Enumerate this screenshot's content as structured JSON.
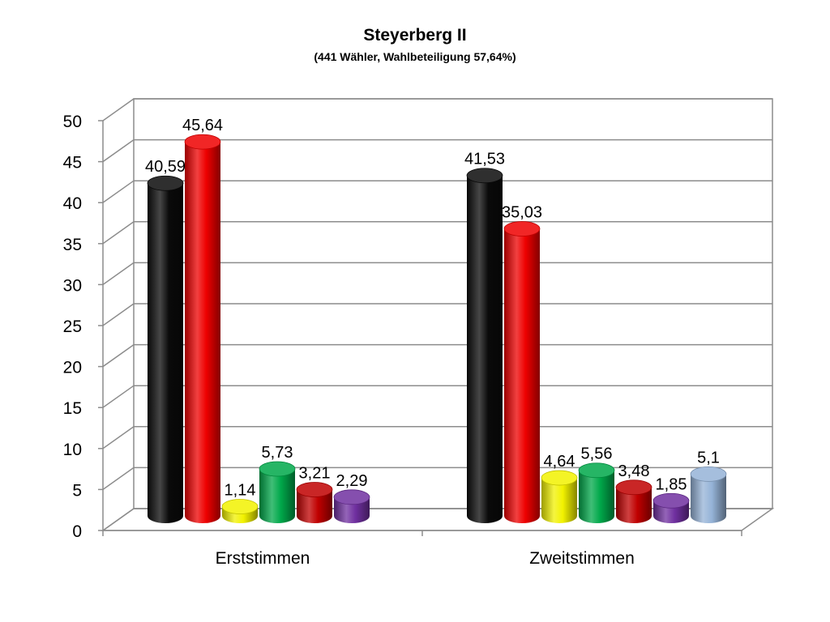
{
  "title": "Steyerberg II",
  "subtitle": "(441 Wähler, Wahlbeteiligung 57,64%)",
  "chart_data": {
    "type": "bar",
    "style": "3d-cylinder",
    "grid": true,
    "legend": "none",
    "ylim": [
      0,
      50
    ],
    "yticks": [
      "0",
      "5",
      "10",
      "15",
      "20",
      "25",
      "30",
      "35",
      "40",
      "45",
      "50"
    ],
    "categories": [
      "Erststimmen",
      "Zweitstimmen"
    ],
    "groups": [
      {
        "category": "Erststimmen",
        "bars": [
          {
            "value": 40.59,
            "label": "40,59",
            "color": "#0a0a0a"
          },
          {
            "value": 45.64,
            "label": "45,64",
            "color": "#ee0000"
          },
          {
            "value": 1.14,
            "label": "1,14",
            "color": "#f2f200"
          },
          {
            "value": 5.73,
            "label": "5,73",
            "color": "#00a84a"
          },
          {
            "value": 3.21,
            "label": "3,21",
            "color": "#c00000"
          },
          {
            "value": 2.29,
            "label": "2,29",
            "color": "#7030a0"
          }
        ]
      },
      {
        "category": "Zweitstimmen",
        "bars": [
          {
            "value": 41.53,
            "label": "41,53",
            "color": "#0a0a0a"
          },
          {
            "value": 35.03,
            "label": "35,03",
            "color": "#ee0000"
          },
          {
            "value": 4.64,
            "label": "4,64",
            "color": "#f2f200"
          },
          {
            "value": 5.56,
            "label": "5,56",
            "color": "#00a84a"
          },
          {
            "value": 3.48,
            "label": "3,48",
            "color": "#c00000"
          },
          {
            "value": 1.85,
            "label": "1,85",
            "color": "#7030a0"
          },
          {
            "value": 5.1,
            "label": "5,1",
            "color": "#95b3d7"
          }
        ]
      }
    ]
  }
}
